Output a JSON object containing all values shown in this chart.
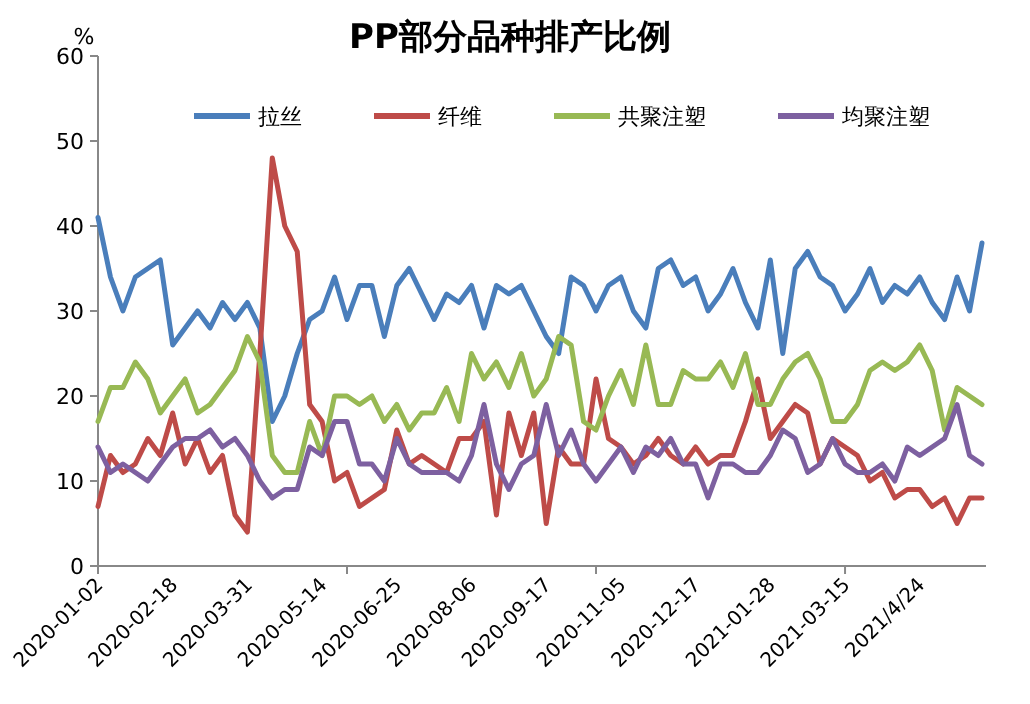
{
  "chart_data": {
    "type": "line",
    "title": "PP部分品种排产比例",
    "ylabel": "%",
    "legend": "top",
    "categories": [
      "2020-01-02",
      null,
      null,
      null,
      null,
      null,
      "2020-02-18",
      null,
      null,
      null,
      null,
      null,
      "2020-03-31",
      null,
      null,
      null,
      null,
      null,
      "2020-05-14",
      null,
      null,
      null,
      null,
      null,
      "2020-06-25",
      null,
      null,
      null,
      null,
      null,
      "2020-08-06",
      null,
      null,
      null,
      null,
      null,
      "2020-09-17",
      null,
      null,
      null,
      null,
      null,
      "2020-11-05",
      null,
      null,
      null,
      null,
      null,
      "2020-12-17",
      null,
      null,
      null,
      null,
      null,
      "2021-01-28",
      null,
      null,
      null,
      null,
      null,
      "2021-03-15",
      null,
      null,
      null,
      null,
      null,
      "2021/4/24",
      null,
      null,
      null,
      null,
      null
    ],
    "ylim": [
      0,
      60
    ],
    "yticks": [
      0,
      10,
      20,
      30,
      40,
      50,
      60
    ],
    "series": [
      {
        "name": "拉丝",
        "color": "#4a7ebb",
        "values": [
          41,
          34,
          30,
          34,
          35,
          36,
          26,
          28,
          30,
          28,
          31,
          29,
          31,
          28,
          17,
          20,
          25,
          29,
          30,
          34,
          29,
          33,
          33,
          27,
          33,
          35,
          32,
          29,
          32,
          31,
          33,
          28,
          33,
          32,
          33,
          30,
          27,
          25,
          34,
          33,
          30,
          33,
          34,
          30,
          28,
          35,
          36,
          33,
          34,
          30,
          32,
          35,
          31,
          28,
          36,
          25,
          35,
          37,
          34,
          33,
          30,
          32,
          35,
          31,
          33,
          32,
          34,
          31,
          29,
          34,
          30,
          38
        ]
      },
      {
        "name": "纤维",
        "color": "#be4b48",
        "values": [
          7,
          13,
          11,
          12,
          15,
          13,
          18,
          12,
          15,
          11,
          13,
          6,
          4,
          25,
          48,
          40,
          37,
          19,
          17,
          10,
          11,
          7,
          8,
          9,
          16,
          12,
          13,
          12,
          11,
          15,
          15,
          17,
          6,
          18,
          13,
          18,
          5,
          14,
          12,
          12,
          22,
          15,
          14,
          12,
          13,
          15,
          13,
          12,
          14,
          12,
          13,
          13,
          17,
          22,
          15,
          17,
          19,
          18,
          12,
          15,
          14,
          13,
          10,
          11,
          8,
          9,
          9,
          7,
          8,
          5,
          8,
          8
        ]
      },
      {
        "name": "共聚注塑",
        "color": "#98b954",
        "values": [
          17,
          21,
          21,
          24,
          22,
          18,
          20,
          22,
          18,
          19,
          21,
          23,
          27,
          24,
          13,
          11,
          11,
          17,
          13,
          20,
          20,
          19,
          20,
          17,
          19,
          16,
          18,
          18,
          21,
          17,
          25,
          22,
          24,
          21,
          25,
          20,
          22,
          27,
          26,
          17,
          16,
          20,
          23,
          19,
          26,
          19,
          19,
          23,
          22,
          22,
          24,
          21,
          25,
          19,
          19,
          22,
          24,
          25,
          22,
          17,
          17,
          19,
          23,
          24,
          23,
          24,
          26,
          23,
          16,
          21,
          20,
          19
        ]
      },
      {
        "name": "均聚注塑",
        "color": "#7d60a0",
        "values": [
          14,
          11,
          12,
          11,
          10,
          12,
          14,
          15,
          15,
          16,
          14,
          15,
          13,
          10,
          8,
          9,
          9,
          14,
          13,
          17,
          17,
          12,
          12,
          10,
          15,
          12,
          11,
          11,
          11,
          10,
          13,
          19,
          12,
          9,
          12,
          13,
          19,
          13,
          16,
          12,
          10,
          12,
          14,
          11,
          14,
          13,
          15,
          12,
          12,
          8,
          12,
          12,
          11,
          11,
          13,
          16,
          15,
          11,
          12,
          15,
          12,
          11,
          11,
          12,
          10,
          14,
          13,
          14,
          15,
          19,
          13,
          12
        ]
      }
    ]
  }
}
